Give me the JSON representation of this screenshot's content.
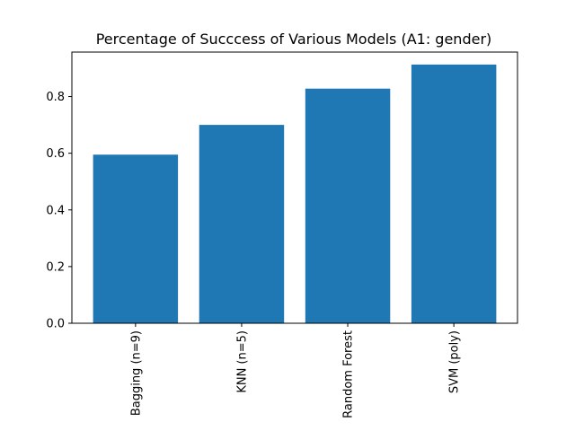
{
  "chart_data": {
    "type": "bar",
    "title": "Percentage of Succcess of Various Models (A1: gender)",
    "xlabel": "",
    "ylabel": "",
    "categories": [
      "Bagging (n=9)",
      "KNN (n=5)",
      "Random Forest",
      "SVM (poly)"
    ],
    "values": [
      0.595,
      0.7,
      0.828,
      0.913
    ],
    "ylim": [
      0,
      0.957
    ],
    "yticks": [
      0.0,
      0.2,
      0.4,
      0.6,
      0.8
    ],
    "ytick_labels": [
      "0.0",
      "0.2",
      "0.4",
      "0.6",
      "0.8"
    ],
    "bar_color": "#1f77b4",
    "grid": false,
    "legend": "none"
  }
}
